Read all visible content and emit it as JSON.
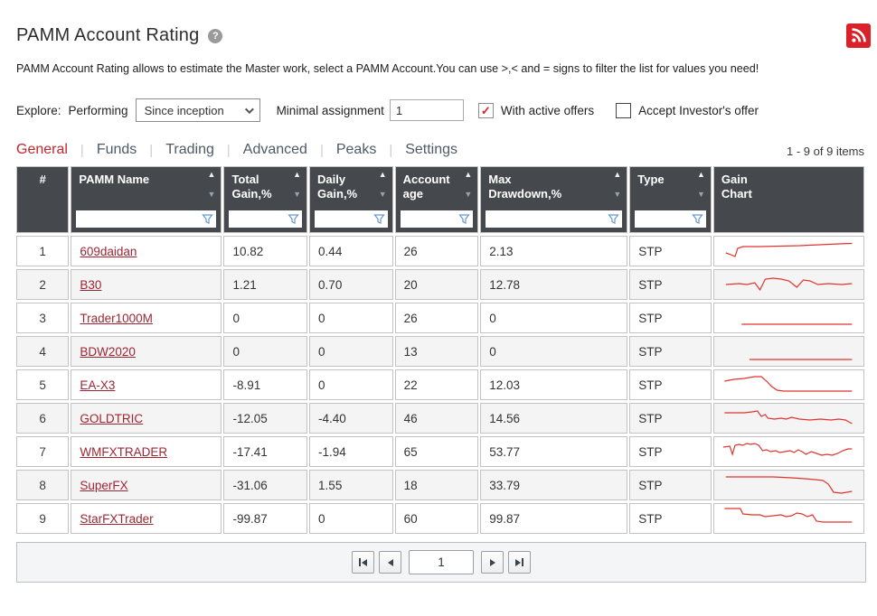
{
  "page": {
    "title": "PAMM Account Rating",
    "description": "PAMM Account Rating allows to estimate the Master work, select a PAMM Account.You can use >,< and = signs to filter the list for values you need!",
    "items_count": "1 - 9 of 9 items"
  },
  "controls": {
    "explore_label": "Explore:",
    "explore_value": "Performing",
    "period_selected": "Since inception",
    "minimal_assignment_label": "Minimal assignment",
    "minimal_assignment_value": "1",
    "with_active_offers": {
      "label": "With active offers",
      "checked": true
    },
    "accept_investors_offer": {
      "label": "Accept Investor's offer",
      "checked": false
    }
  },
  "tabs": [
    {
      "label": "General",
      "active": true
    },
    {
      "label": "Funds",
      "active": false
    },
    {
      "label": "Trading",
      "active": false
    },
    {
      "label": "Advanced",
      "active": false
    },
    {
      "label": "Peaks",
      "active": false
    },
    {
      "label": "Settings",
      "active": false
    }
  ],
  "table": {
    "columns": [
      {
        "line1": "#",
        "line2": ""
      },
      {
        "line1": "PAMM Name",
        "line2": ""
      },
      {
        "line1": "Total",
        "line2": "Gain,%"
      },
      {
        "line1": "Daily",
        "line2": "Gain,%"
      },
      {
        "line1": "Account",
        "line2": "age"
      },
      {
        "line1": "Max",
        "line2": "Drawdown,%"
      },
      {
        "line1": "Type",
        "line2": ""
      },
      {
        "line1": "Gain",
        "line2": "Chart"
      }
    ],
    "rows": [
      {
        "num": "1",
        "name": "609daidan",
        "total_gain": "10.82",
        "daily_gain": "0.44",
        "account_age": "26",
        "max_drawdown": "2.13",
        "type": "STP",
        "spark": [
          [
            4,
            16
          ],
          [
            8,
            18
          ],
          [
            11,
            20
          ],
          [
            13,
            11
          ],
          [
            17,
            9
          ],
          [
            30,
            9
          ],
          [
            45,
            8.5
          ],
          [
            60,
            8
          ],
          [
            75,
            7
          ],
          [
            90,
            6
          ],
          [
            100,
            5.5
          ]
        ]
      },
      {
        "num": "2",
        "name": "B30",
        "total_gain": "1.21",
        "daily_gain": "0.70",
        "account_age": "20",
        "max_drawdown": "12.78",
        "type": "STP",
        "spark": [
          [
            4,
            14
          ],
          [
            14,
            13
          ],
          [
            20,
            14
          ],
          [
            26,
            12
          ],
          [
            30,
            20
          ],
          [
            34,
            8
          ],
          [
            40,
            7
          ],
          [
            46,
            8
          ],
          [
            52,
            10
          ],
          [
            58,
            17
          ],
          [
            63,
            9
          ],
          [
            68,
            10
          ],
          [
            74,
            14
          ],
          [
            82,
            13
          ],
          [
            92,
            14
          ],
          [
            100,
            13
          ]
        ]
      },
      {
        "num": "3",
        "name": "Trader1000M",
        "total_gain": "0",
        "daily_gain": "0",
        "account_age": "26",
        "max_drawdown": "0",
        "type": "STP",
        "spark": [
          [
            16,
            21
          ],
          [
            100,
            21
          ]
        ]
      },
      {
        "num": "4",
        "name": "BDW2020",
        "total_gain": "0",
        "daily_gain": "0",
        "account_age": "13",
        "max_drawdown": "0",
        "type": "STP",
        "spark": [
          [
            22,
            23
          ],
          [
            100,
            23
          ]
        ]
      },
      {
        "num": "5",
        "name": "EA-X3",
        "total_gain": "-8.91",
        "daily_gain": "0",
        "account_age": "22",
        "max_drawdown": "12.03",
        "type": "STP",
        "spark": [
          [
            3,
            10
          ],
          [
            10,
            8
          ],
          [
            18,
            7
          ],
          [
            26,
            5
          ],
          [
            31,
            5
          ],
          [
            35,
            10
          ],
          [
            39,
            16
          ],
          [
            43,
            20
          ],
          [
            48,
            21
          ],
          [
            56,
            21
          ],
          [
            100,
            21
          ]
        ]
      },
      {
        "num": "6",
        "name": "GOLDTRIC",
        "total_gain": "-12.05",
        "daily_gain": "-4.40",
        "account_age": "46",
        "max_drawdown": "14.56",
        "type": "STP",
        "spark": [
          [
            3,
            8
          ],
          [
            18,
            8
          ],
          [
            24,
            7
          ],
          [
            28,
            6
          ],
          [
            31,
            12
          ],
          [
            34,
            10
          ],
          [
            36,
            14
          ],
          [
            41,
            15
          ],
          [
            46,
            14
          ],
          [
            50,
            15
          ],
          [
            54,
            13
          ],
          [
            60,
            15
          ],
          [
            68,
            16
          ],
          [
            76,
            15
          ],
          [
            84,
            16
          ],
          [
            90,
            15
          ],
          [
            95,
            16
          ],
          [
            100,
            20
          ]
        ]
      },
      {
        "num": "7",
        "name": "WMFXTRADER",
        "total_gain": "-17.41",
        "daily_gain": "-1.94",
        "account_age": "65",
        "max_drawdown": "53.77",
        "type": "STP",
        "spark": [
          [
            2,
            9
          ],
          [
            7,
            8
          ],
          [
            9,
            17
          ],
          [
            11,
            7
          ],
          [
            14,
            6
          ],
          [
            17,
            7
          ],
          [
            20,
            5
          ],
          [
            23,
            6
          ],
          [
            26,
            5
          ],
          [
            29,
            7
          ],
          [
            32,
            13
          ],
          [
            35,
            12
          ],
          [
            38,
            14
          ],
          [
            42,
            13
          ],
          [
            45,
            15
          ],
          [
            49,
            14
          ],
          [
            53,
            13
          ],
          [
            56,
            15
          ],
          [
            59,
            12
          ],
          [
            62,
            14
          ],
          [
            65,
            17
          ],
          [
            69,
            14
          ],
          [
            73,
            16
          ],
          [
            77,
            18
          ],
          [
            81,
            17
          ],
          [
            85,
            18
          ],
          [
            89,
            16
          ],
          [
            93,
            13
          ],
          [
            97,
            11
          ],
          [
            100,
            11
          ]
        ]
      },
      {
        "num": "8",
        "name": "SuperFX",
        "total_gain": "-31.06",
        "daily_gain": "1.55",
        "account_age": "18",
        "max_drawdown": "33.79",
        "type": "STP",
        "spark": [
          [
            4,
            5
          ],
          [
            40,
            5
          ],
          [
            54,
            6
          ],
          [
            64,
            7
          ],
          [
            72,
            8
          ],
          [
            78,
            9
          ],
          [
            82,
            13
          ],
          [
            86,
            22
          ],
          [
            92,
            23
          ],
          [
            100,
            21
          ]
        ]
      },
      {
        "num": "9",
        "name": "StarFXTrader",
        "total_gain": "-99.87",
        "daily_gain": "0",
        "account_age": "60",
        "max_drawdown": "99.87",
        "type": "STP",
        "spark": [
          [
            3,
            3
          ],
          [
            15,
            3
          ],
          [
            17,
            9
          ],
          [
            24,
            10
          ],
          [
            30,
            10
          ],
          [
            34,
            12
          ],
          [
            40,
            11
          ],
          [
            46,
            10
          ],
          [
            50,
            12
          ],
          [
            54,
            11
          ],
          [
            58,
            8
          ],
          [
            62,
            9
          ],
          [
            66,
            12
          ],
          [
            70,
            10
          ],
          [
            73,
            17
          ],
          [
            78,
            18
          ],
          [
            100,
            18
          ]
        ]
      }
    ]
  },
  "pagination": {
    "current_page": "1"
  },
  "colors": {
    "accent_red": "#c0272d",
    "link": "#9e2533",
    "sparkline": "#e0342f",
    "header_bg": "#45494e",
    "rss_bg": "#da2128",
    "funnel": "#6699cc"
  }
}
